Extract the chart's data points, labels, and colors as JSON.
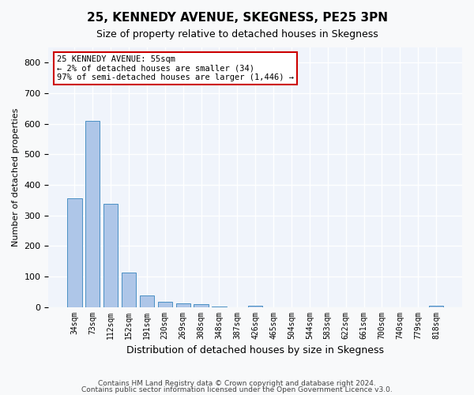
{
  "title": "25, KENNEDY AVENUE, SKEGNESS, PE25 3PN",
  "subtitle": "Size of property relative to detached houses in Skegness",
  "xlabel": "Distribution of detached houses by size in Skegness",
  "ylabel": "Number of detached properties",
  "categories": [
    "34sqm",
    "73sqm",
    "112sqm",
    "152sqm",
    "191sqm",
    "230sqm",
    "269sqm",
    "308sqm",
    "348sqm",
    "387sqm",
    "426sqm",
    "465sqm",
    "504sqm",
    "544sqm",
    "583sqm",
    "622sqm",
    "661sqm",
    "700sqm",
    "740sqm",
    "779sqm",
    "818sqm"
  ],
  "values": [
    355,
    610,
    338,
    113,
    38,
    18,
    13,
    9,
    2,
    0,
    3,
    0,
    0,
    0,
    0,
    0,
    0,
    0,
    0,
    0,
    3
  ],
  "bar_color": "#aec6e8",
  "bar_edge_color": "#4a90c4",
  "highlight_bar_index": 0,
  "highlight_color": "#aec6e8",
  "annotation_text": "25 KENNEDY AVENUE: 55sqm\n← 2% of detached houses are smaller (34)\n97% of semi-detached houses are larger (1,446) →",
  "annotation_box_color": "#ffffff",
  "annotation_box_edge_color": "#cc0000",
  "ylim": [
    0,
    850
  ],
  "yticks": [
    0,
    100,
    200,
    300,
    400,
    500,
    600,
    700,
    800
  ],
  "background_color": "#f0f4fb",
  "grid_color": "#ffffff",
  "footer_line1": "Contains HM Land Registry data © Crown copyright and database right 2024.",
  "footer_line2": "Contains public sector information licensed under the Open Government Licence v3.0."
}
